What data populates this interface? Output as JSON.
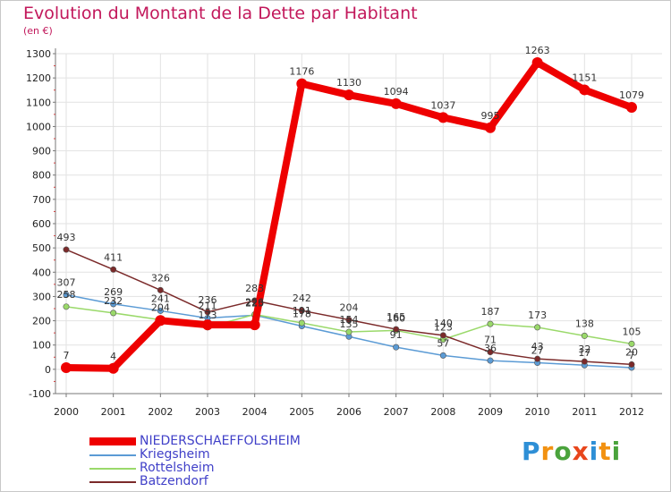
{
  "header": {
    "title": "Evolution du Montant de la Dette par Habitant",
    "unit": "(en €)"
  },
  "logo": {
    "letters": [
      "P",
      "r",
      "o",
      "x",
      "i",
      "t",
      "i"
    ],
    "colors": [
      "#2e8fd6",
      "#f29111",
      "#4aa33c",
      "#e8461c",
      "#2e8fd6",
      "#f29111",
      "#4aa33c"
    ]
  },
  "chart_data": {
    "type": "line",
    "title": "Evolution du Montant de la Dette par Habitant",
    "ylabel": "(en €)",
    "x": [
      "2000",
      "2001",
      "2002",
      "2003",
      "2004",
      "2005",
      "2006",
      "2007",
      "2008",
      "2009",
      "2010",
      "2011",
      "2012"
    ],
    "ylim": [
      -100,
      1300
    ],
    "yticks": [
      -100,
      0,
      100,
      200,
      300,
      400,
      500,
      600,
      700,
      800,
      900,
      1000,
      1100,
      1200,
      1300
    ],
    "grid": true,
    "legend": "bottom-left",
    "series": [
      {
        "name": "NIEDERSCHAEFFOLSHEIM",
        "color": "#ee0000",
        "width": 8,
        "values": [
          7,
          4,
          201,
          183,
          183,
          1176,
          1130,
          1094,
          1037,
          995,
          1263,
          1151,
          1079
        ],
        "labels": [
          "7",
          "4",
          "",
          "",
          "",
          "1176",
          "1130",
          "1094",
          "1037",
          "995",
          "1263",
          "1151",
          "1079"
        ]
      },
      {
        "name": "Kriegsheim",
        "color": "#5b9bd5",
        "width": 1.5,
        "values": [
          307,
          269,
          241,
          211,
          223,
          178,
          135,
          91,
          57,
          36,
          27,
          17,
          7
        ],
        "labels": [
          "307",
          "269",
          "241",
          "211",
          "223",
          "178",
          "135",
          "91",
          "57",
          "36",
          "27",
          "17",
          "7"
        ]
      },
      {
        "name": "Rottelsheim",
        "color": "#9ad96a",
        "width": 1.5,
        "values": [
          258,
          232,
          204,
          173,
          226,
          191,
          154,
          160,
          123,
          187,
          173,
          138,
          105
        ],
        "labels": [
          "258",
          "232",
          "204",
          "173",
          "226",
          "191",
          "154",
          "160",
          "123",
          "187",
          "173",
          "138",
          "105"
        ]
      },
      {
        "name": "Batzendorf",
        "color": "#7b2a2a",
        "width": 1.5,
        "values": [
          493,
          411,
          326,
          236,
          283,
          242,
          204,
          165,
          140,
          71,
          43,
          32,
          20
        ],
        "labels": [
          "493",
          "411",
          "326",
          "236",
          "283",
          "242",
          "204",
          "165",
          "140",
          "71",
          "43",
          "32",
          "20"
        ]
      }
    ]
  }
}
